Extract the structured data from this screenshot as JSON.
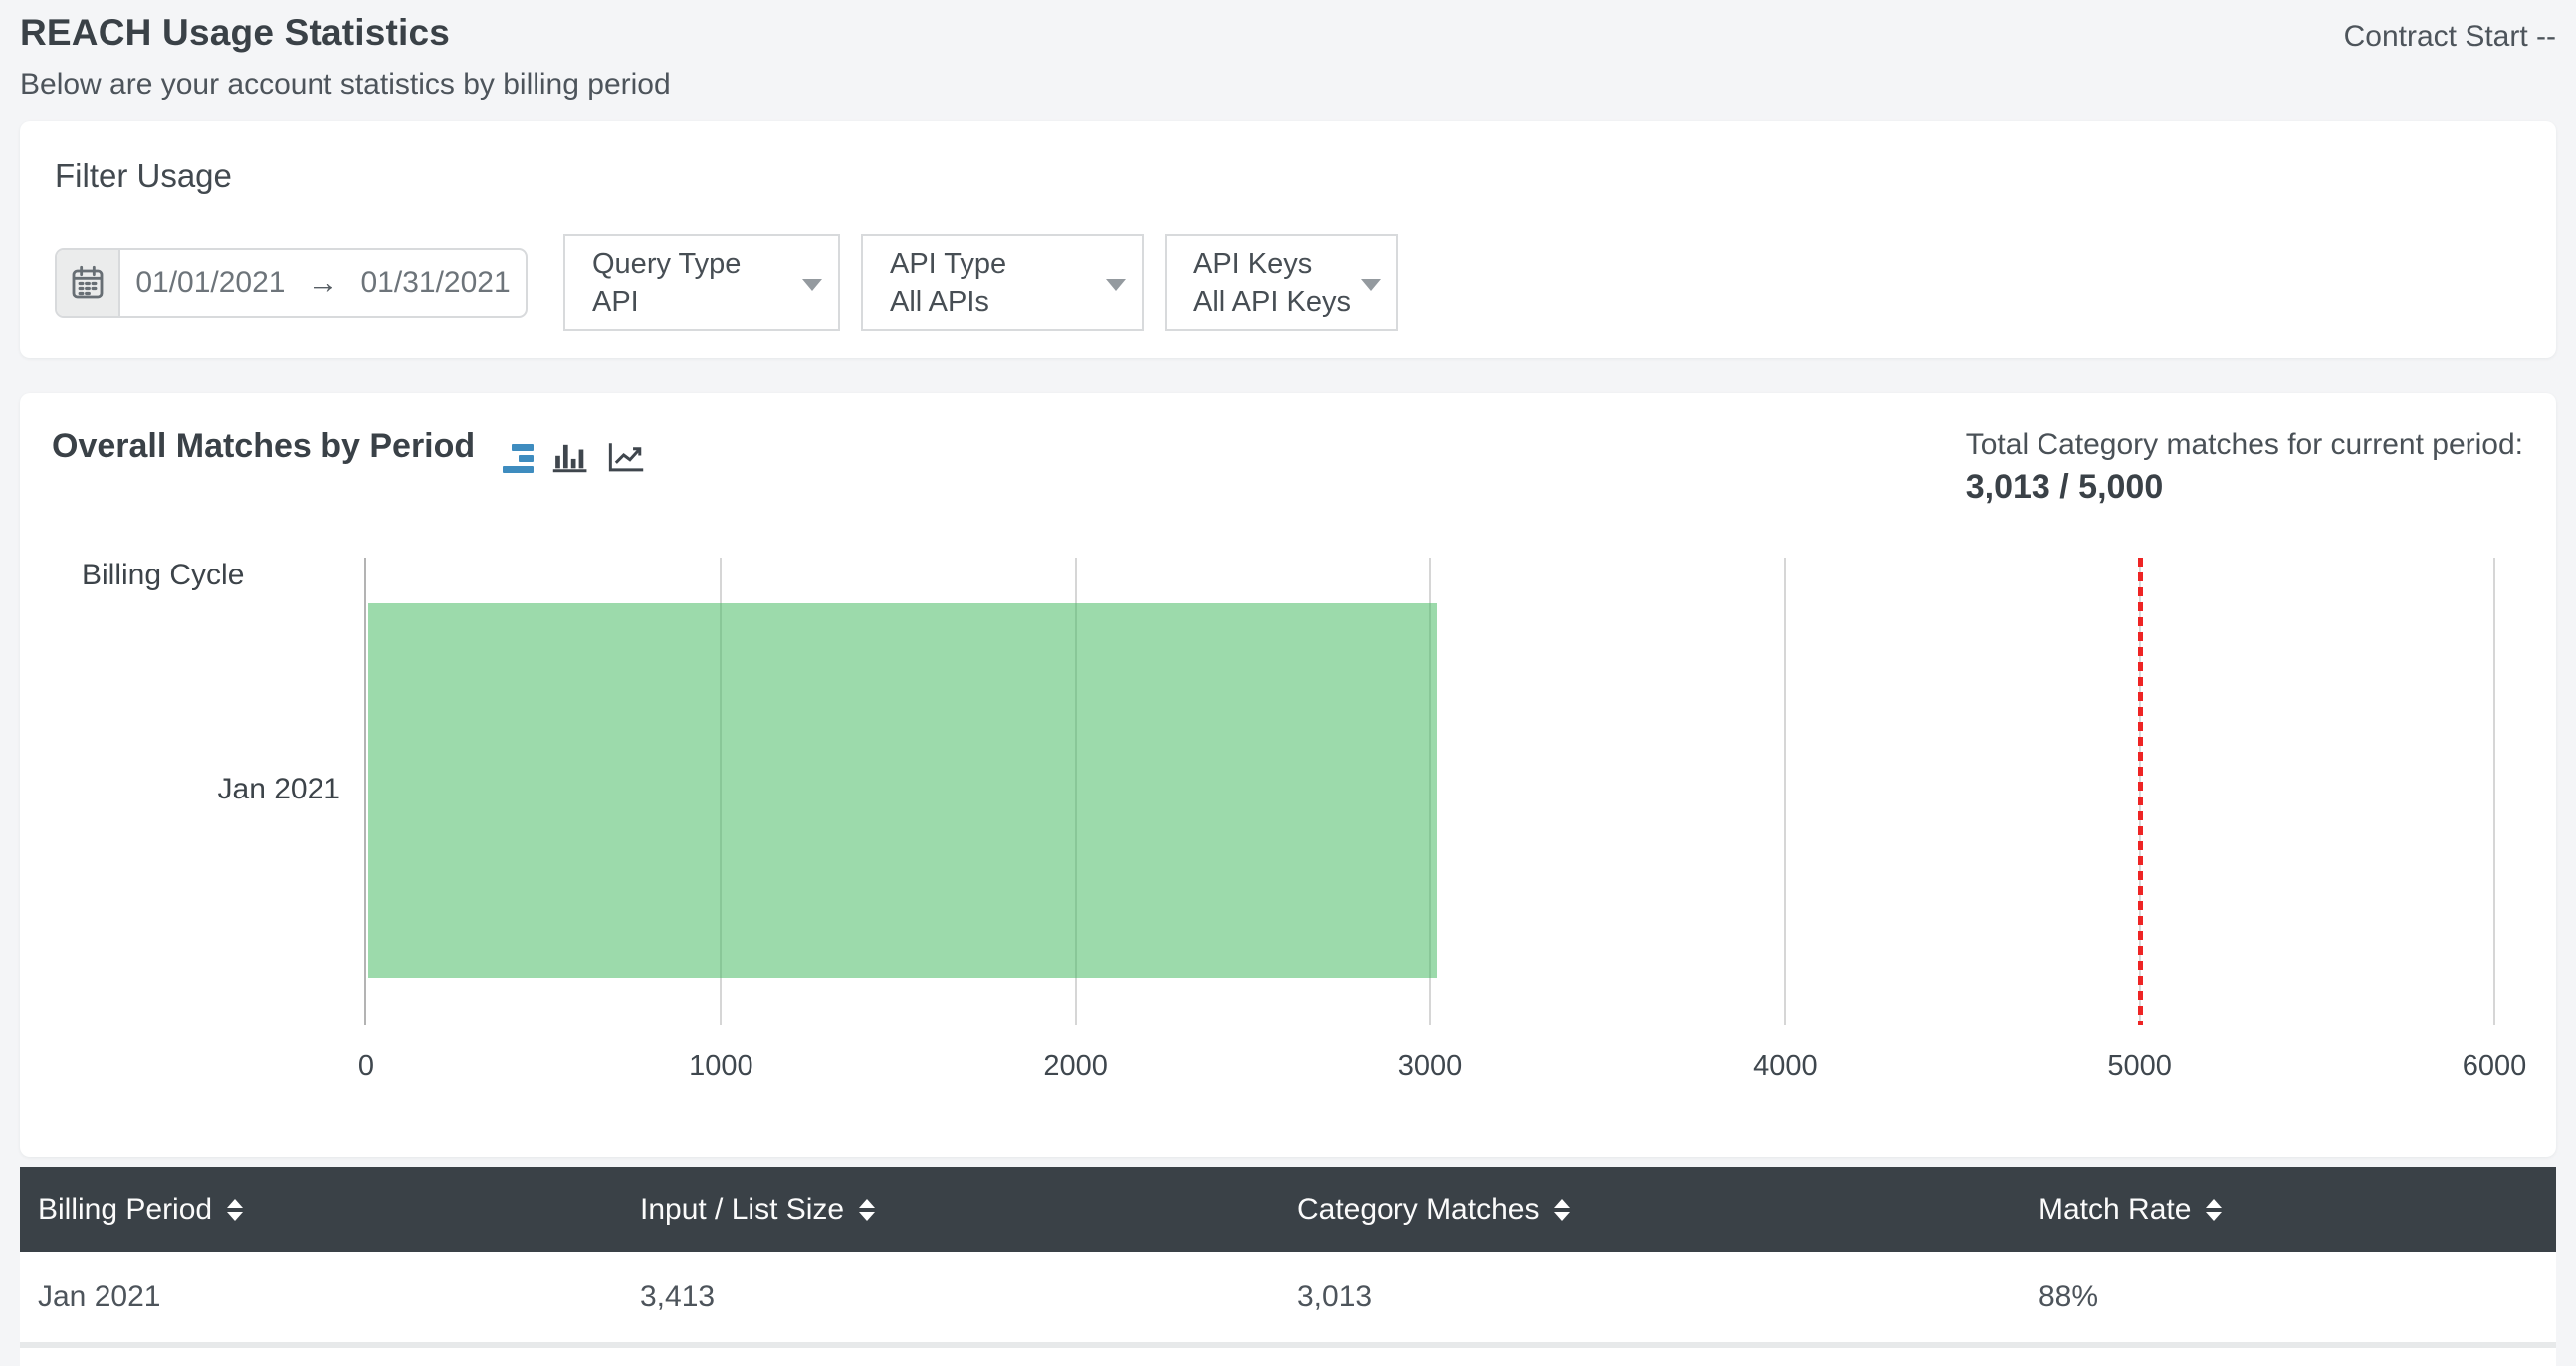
{
  "header": {
    "title": "REACH Usage Statistics",
    "subtitle": "Below are your account statistics by billing period",
    "contract_start": "Contract Start --"
  },
  "filter": {
    "title": "Filter Usage",
    "date_range": {
      "start": "01/01/2021",
      "arrow": "→",
      "end": "01/31/2021"
    },
    "dropdowns": [
      {
        "label": "Query Type",
        "value": "API"
      },
      {
        "label": "API Type",
        "value": "All APIs"
      },
      {
        "label": "API Keys",
        "value": "All API Keys"
      }
    ]
  },
  "chart_section": {
    "title": "Overall Matches by Period",
    "icons": [
      "hbar-chart-icon",
      "column-chart-icon",
      "line-chart-icon"
    ],
    "total_label": "Total Category matches for current period:",
    "total_value": "3,013 / 5,000"
  },
  "chart_data": {
    "type": "bar",
    "orientation": "horizontal",
    "title": "Overall Matches by Period",
    "ylabel": "Billing Cycle",
    "categories": [
      "Jan 2021"
    ],
    "values": [
      3013
    ],
    "xlim": [
      0,
      6000
    ],
    "xticks": [
      0,
      1000,
      2000,
      3000,
      4000,
      5000,
      6000
    ],
    "limit_line": 5000,
    "bar_color": "rgba(75,188,102,0.55)",
    "limit_color": "#ee2424",
    "grid": true,
    "legend": "none"
  },
  "table": {
    "columns": [
      "Billing Period",
      "Input / List Size",
      "Category Matches",
      "Match Rate"
    ],
    "rows": [
      [
        "Jan 2021",
        "3,413",
        "3,013",
        "88%"
      ]
    ]
  },
  "colors": {
    "accent_blue": "#3e8cbf",
    "bar_green": "rgba(75,188,102,0.55)",
    "limit_red": "#ee2424",
    "table_header_bg": "#3a4147",
    "page_bg": "#f4f5f7"
  }
}
